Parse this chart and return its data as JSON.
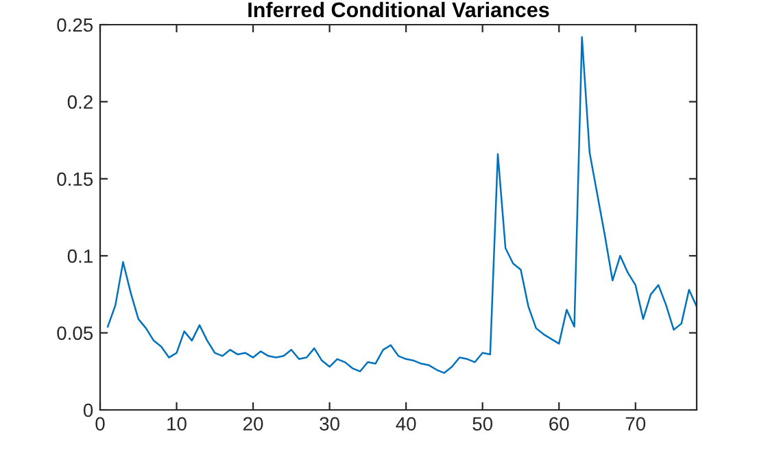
{
  "chart_data": {
    "type": "line",
    "title": "Inferred Conditional Variances",
    "x": [
      1,
      2,
      3,
      4,
      5,
      6,
      7,
      8,
      9,
      10,
      11,
      12,
      13,
      14,
      15,
      16,
      17,
      18,
      19,
      20,
      21,
      22,
      23,
      24,
      25,
      26,
      27,
      28,
      29,
      30,
      31,
      32,
      33,
      34,
      35,
      36,
      37,
      38,
      39,
      40,
      41,
      42,
      43,
      44,
      45,
      46,
      47,
      48,
      49,
      50,
      51,
      52,
      53,
      54,
      55,
      56,
      57,
      58,
      59,
      60,
      61,
      62,
      63,
      64,
      65,
      66,
      67,
      68,
      69,
      70,
      71,
      72,
      73,
      74,
      75,
      76,
      77,
      78
    ],
    "series": [
      {
        "color": "#0072bd",
        "values": [
          0.054,
          0.068,
          0.096,
          0.076,
          0.059,
          0.053,
          0.045,
          0.041,
          0.034,
          0.037,
          0.051,
          0.045,
          0.055,
          0.045,
          0.037,
          0.035,
          0.039,
          0.036,
          0.037,
          0.034,
          0.038,
          0.035,
          0.034,
          0.035,
          0.039,
          0.033,
          0.034,
          0.04,
          0.032,
          0.028,
          0.033,
          0.031,
          0.027,
          0.025,
          0.031,
          0.03,
          0.039,
          0.042,
          0.035,
          0.033,
          0.032,
          0.03,
          0.029,
          0.026,
          0.024,
          0.028,
          0.034,
          0.033,
          0.031,
          0.037,
          0.036,
          0.166,
          0.105,
          0.095,
          0.091,
          0.067,
          0.053,
          0.049,
          0.046,
          0.043,
          0.065,
          0.054,
          0.242,
          0.167,
          0.14,
          0.113,
          0.084,
          0.1,
          0.089,
          0.081,
          0.059,
          0.075,
          0.081,
          0.068,
          0.052,
          0.056,
          0.078,
          0.067
        ]
      }
    ],
    "xlim": [
      0,
      78
    ],
    "ylim": [
      0,
      0.25
    ],
    "xticks": [
      0,
      10,
      20,
      30,
      40,
      50,
      60,
      70
    ],
    "yticks": [
      0,
      0.05,
      0.1,
      0.15,
      0.2,
      0.25
    ],
    "grid": false,
    "legend": false,
    "marker": "none",
    "line_style": "solid"
  }
}
